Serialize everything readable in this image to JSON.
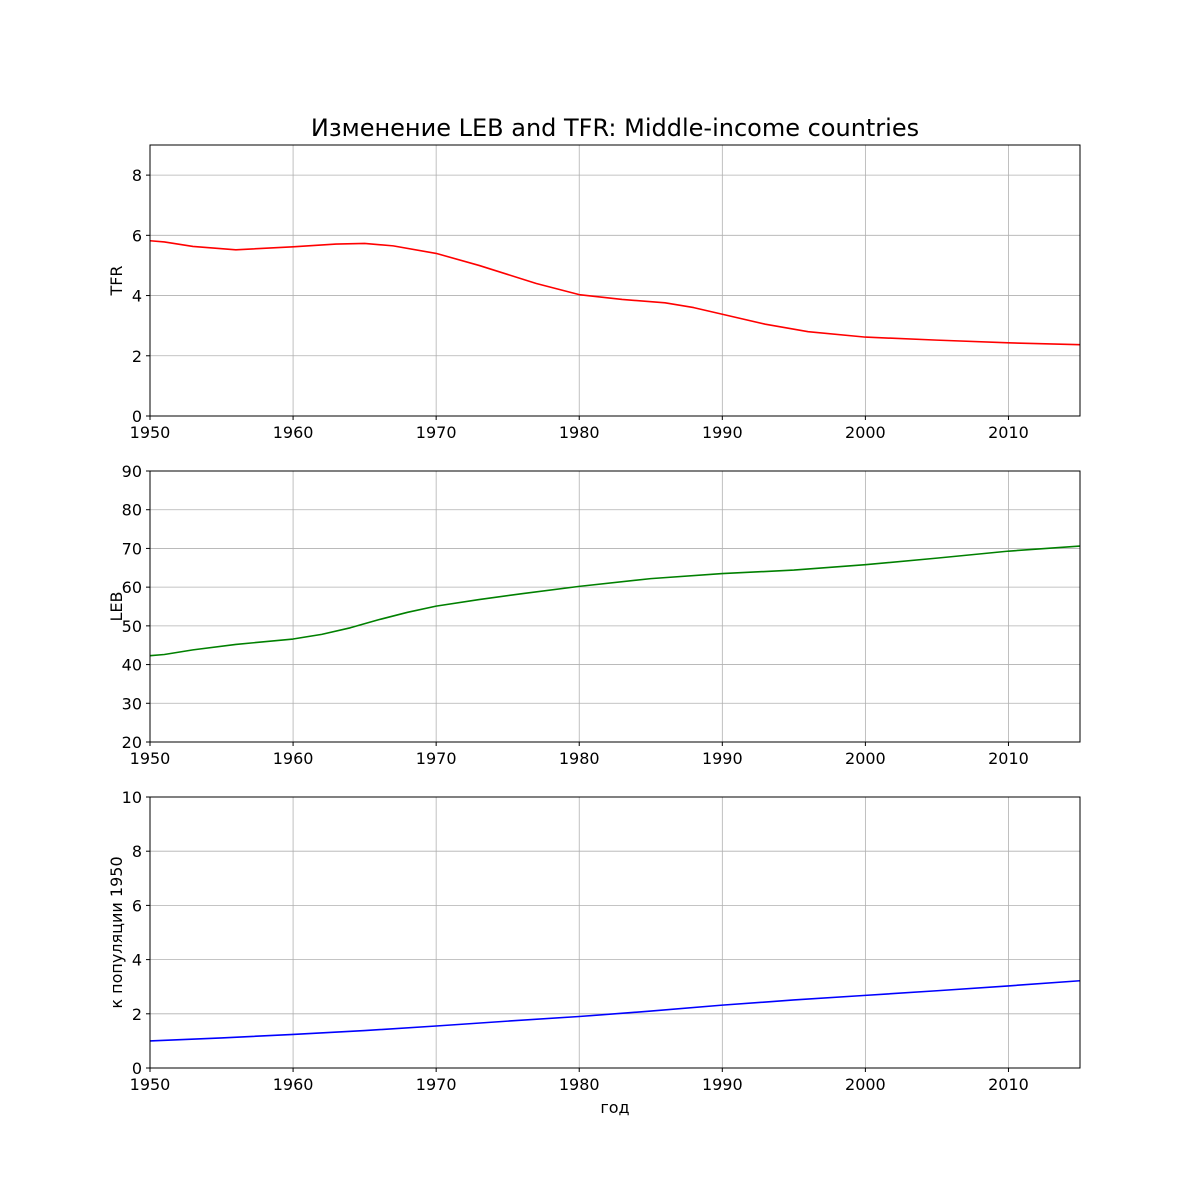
{
  "chart_data": [
    {
      "type": "line",
      "title": "Изменение LEB and TFR: Middle-income countries",
      "xlabel": "",
      "ylabel": "TFR",
      "xlim": [
        1950,
        2015
      ],
      "ylim": [
        0,
        9
      ],
      "xticks": [
        "1950",
        "1960",
        "1970",
        "1980",
        "1990",
        "2000",
        "2010"
      ],
      "yticks": [
        "0",
        "2",
        "4",
        "6",
        "8"
      ],
      "grid": true,
      "color": "#ff0000",
      "x": [
        1950,
        1951,
        1953,
        1956,
        1960,
        1963,
        1965,
        1967,
        1970,
        1973,
        1977,
        1980,
        1983,
        1986,
        1988,
        1990,
        1993,
        1996,
        2000,
        2005,
        2010,
        2015
      ],
      "values": [
        5.82,
        5.78,
        5.63,
        5.52,
        5.62,
        5.71,
        5.73,
        5.65,
        5.4,
        5.0,
        4.4,
        4.03,
        3.87,
        3.76,
        3.6,
        3.38,
        3.05,
        2.8,
        2.62,
        2.52,
        2.43,
        2.37
      ]
    },
    {
      "type": "line",
      "title": "",
      "xlabel": "",
      "ylabel": "LEB",
      "xlim": [
        1950,
        2015
      ],
      "ylim": [
        20,
        90
      ],
      "xticks": [
        "1950",
        "1960",
        "1970",
        "1980",
        "1990",
        "2000",
        "2010"
      ],
      "yticks": [
        "20",
        "30",
        "40",
        "50",
        "60",
        "70",
        "80",
        "90"
      ],
      "grid": true,
      "color": "#008000",
      "x": [
        1950,
        1951,
        1953,
        1956,
        1960,
        1962,
        1964,
        1966,
        1968,
        1970,
        1973,
        1976,
        1980,
        1985,
        1990,
        1995,
        2000,
        2005,
        2010,
        2015
      ],
      "values": [
        42.3,
        42.6,
        43.8,
        45.2,
        46.6,
        47.8,
        49.5,
        51.6,
        53.5,
        55.1,
        56.8,
        58.3,
        60.2,
        62.2,
        63.5,
        64.4,
        65.8,
        67.5,
        69.3,
        70.6
      ]
    },
    {
      "type": "line",
      "title": "",
      "xlabel": "год",
      "ylabel": "к популяции 1950",
      "xlim": [
        1950,
        2015
      ],
      "ylim": [
        0,
        10
      ],
      "xticks": [
        "1950",
        "1960",
        "1970",
        "1980",
        "1990",
        "2000",
        "2010"
      ],
      "yticks": [
        "0",
        "2",
        "4",
        "6",
        "8",
        "10"
      ],
      "grid": true,
      "color": "#0000ff",
      "x": [
        1950,
        1955,
        1960,
        1965,
        1970,
        1975,
        1980,
        1985,
        1990,
        1995,
        2000,
        2005,
        2010,
        2015
      ],
      "values": [
        1.0,
        1.11,
        1.24,
        1.38,
        1.55,
        1.73,
        1.9,
        2.1,
        2.32,
        2.51,
        2.68,
        2.85,
        3.03,
        3.22
      ]
    }
  ]
}
